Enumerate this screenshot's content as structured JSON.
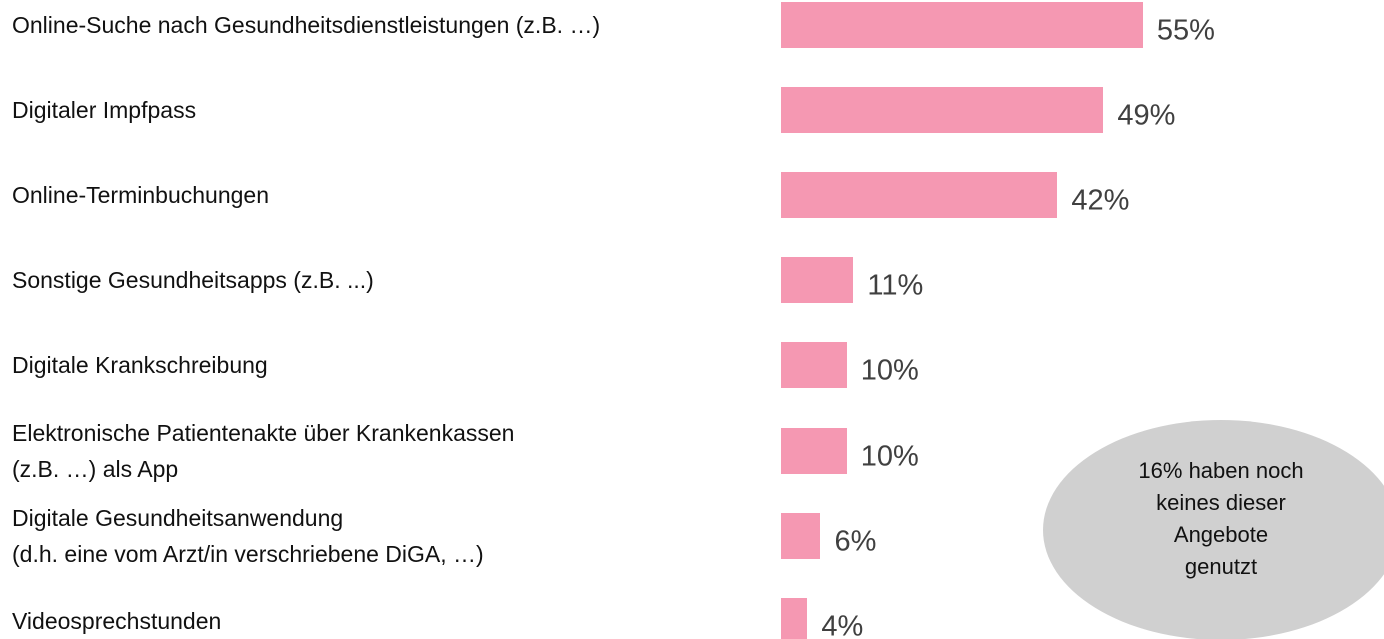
{
  "chart_data": {
    "type": "bar",
    "orientation": "horizontal",
    "categories": [
      "Online-Suche nach Gesundheitsdienstleistungen (z.B. …)",
      "Digitaler Impfpass",
      "Online-Terminbuchungen",
      "Sonstige Gesundheitsapps (z.B. ...)",
      "Digitale Krankschreibung",
      "Elektronische Patientenakte über Krankenkassen\n(z.B. …) als App",
      "Digitale Gesundheitsanwendung\n(d.h. eine vom Arzt/in verschriebene DiGA, …)",
      "Videosprechstunden"
    ],
    "values": [
      55,
      49,
      42,
      11,
      10,
      10,
      6,
      4
    ],
    "value_labels": [
      "55%",
      "49%",
      "42%",
      "11%",
      "10%",
      "10%",
      "6%",
      "4%"
    ],
    "color": "#f598b2",
    "annotation": "16% haben noch\nkeines dieser\nAngebote\ngenutzt"
  }
}
